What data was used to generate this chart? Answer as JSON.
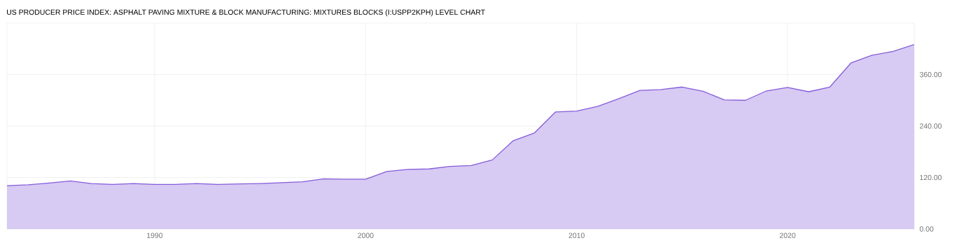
{
  "chart_data": {
    "type": "area",
    "title": "US PRODUCER PRICE INDEX: ASPHALT PAVING MIXTURE & BLOCK MANUFACTURING: MIXTURES BLOCKS (I:USPP2KPH) LEVEL CHART",
    "x": [
      1983,
      1984,
      1985,
      1986,
      1987,
      1988,
      1989,
      1990,
      1991,
      1992,
      1993,
      1994,
      1995,
      1996,
      1997,
      1998,
      1999,
      2000,
      2001,
      2002,
      2003,
      2004,
      2005,
      2006,
      2007,
      2008,
      2009,
      2010,
      2011,
      2012,
      2013,
      2014,
      2015,
      2016,
      2017,
      2018,
      2019,
      2020,
      2021,
      2022,
      2023,
      2024,
      2025,
      2026
    ],
    "values": [
      101,
      103,
      107,
      112,
      106,
      104,
      106,
      104,
      104,
      106,
      104,
      105,
      106,
      108,
      110,
      117,
      116,
      116,
      134,
      139,
      140,
      146,
      148,
      161,
      206,
      224,
      273,
      275,
      286,
      304,
      323,
      325,
      331,
      321,
      301,
      300,
      322,
      330,
      320,
      331,
      387,
      405,
      414,
      430
    ],
    "color": "#d7caf3",
    "xlim": [
      1983,
      2026
    ],
    "xticks": [
      1990,
      2000,
      2010,
      2020
    ],
    "ylim": [
      0,
      480
    ],
    "yticks": [
      {
        "value": 0,
        "label": "0.00"
      },
      {
        "value": 120,
        "label": "120.00"
      },
      {
        "value": 240,
        "label": "240.00"
      },
      {
        "value": 360,
        "label": "360.00"
      }
    ],
    "grid": true
  }
}
